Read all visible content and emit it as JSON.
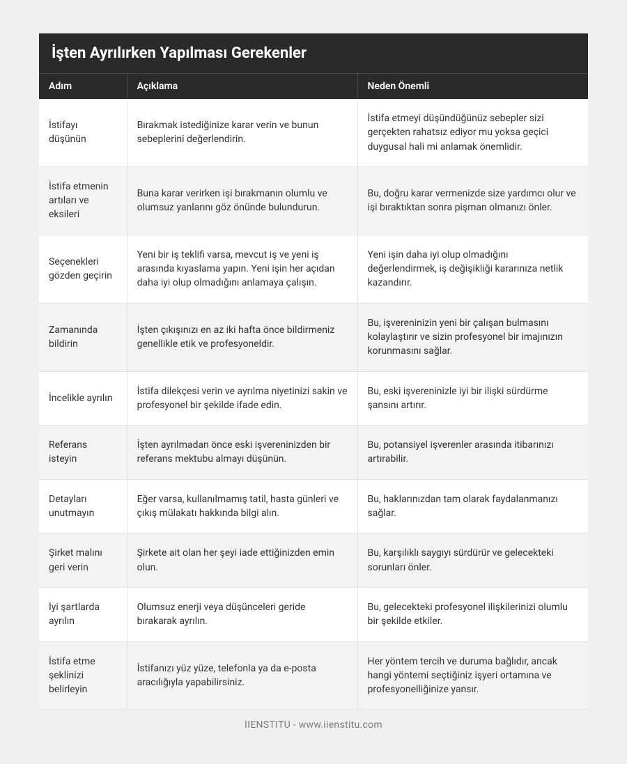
{
  "table": {
    "caption": "İşten Ayrılırken Yapılması Gerekenler",
    "columns": [
      "Adım",
      "Açıklama",
      "Neden Önemli"
    ],
    "rows": [
      {
        "step": "İstifayı düşünün",
        "desc": "Bırakmak istediğinize karar verin ve bunun sebeplerini değerlendirin.",
        "why": "İstifa etmeyi düşündüğünüz sebepler sizi gerçekten rahatsız ediyor mu yoksa geçici duygusal hali mi anlamak önemlidir."
      },
      {
        "step": "İstifa etmenin artıları ve eksileri",
        "desc": "Buna karar verirken işi bırakmanın olumlu ve olumsuz yanlarını göz önünde bulundurun.",
        "why": "Bu, doğru karar vermenizde size yardımcı olur ve işi bıraktıktan sonra pişman olmanızı önler."
      },
      {
        "step": "Seçenekleri gözden geçirin",
        "desc": "Yeni bir iş teklifi varsa, mevcut iş ve yeni iş arasında kıyaslama yapın. Yeni işin her açıdan daha iyi olup olmadığını anlamaya çalışın.",
        "why": "Yeni işin daha iyi olup olmadığını değerlendirmek, iş değişikliği kararınıza netlik kazandırır."
      },
      {
        "step": "Zamanında bildirin",
        "desc": "İşten çıkışınızı en az iki hafta önce bildirmeniz genellikle etik ve profesyoneldir.",
        "why": "Bu, işvereninizin yeni bir çalışan bulmasını kolaylaştırır ve sizin profesyonel bir imajınızın korunmasını sağlar."
      },
      {
        "step": "İncelikle ayrılın",
        "desc": "İstifa dilekçesi verin ve ayrılma niyetinizi sakin ve profesyonel bir şekilde ifade edin.",
        "why": "Bu, eski işvereninizle iyi bir ilişki sürdürme şansını artırır."
      },
      {
        "step": "Referans isteyin",
        "desc": "İşten ayrılmadan önce eski işvereninizden bir referans mektubu almayı düşünün.",
        "why": "Bu, potansiyel işverenler arasında itibarınızı artırabilir."
      },
      {
        "step": "Detayları unutmayın",
        "desc": "Eğer varsa, kullanılmamış tatil, hasta günleri ve çıkış mülakatı hakkında bilgi alın.",
        "why": "Bu, haklarınızdan tam olarak faydalanmanızı sağlar."
      },
      {
        "step": "Şirket malını geri verin",
        "desc": "Şirkete ait olan her şeyi iade ettiğinizden emin olun.",
        "why": "Bu, karşılıklı saygıyı sürdürür ve gelecekteki sorunları önler."
      },
      {
        "step": "İyi şartlarda ayrılın",
        "desc": "Olumsuz enerji veya düşünceleri geride bırakarak ayrılın.",
        "why": "Bu, gelecekteki profesyonel ilişkilerinizi olumlu bir şekilde etkiler."
      },
      {
        "step": "İstifa etme şeklinizi belirleyin",
        "desc": "İstifanızı yüz yüze, telefonla ya da e-posta aracılığıyla yapabilirsiniz.",
        "why": "Her yöntem tercih ve duruma bağlıdır, ancak hangi yöntemi seçtiğiniz işyeri ortamına ve profesyonelliğinize yansır."
      }
    ]
  },
  "footer": "IIENSTITU - www.iienstitu.com",
  "styling": {
    "background_color": "#f0f0f0",
    "caption_bg": "#2a2a2a",
    "caption_fg": "#ffffff",
    "header_bg": "#2a2a2a",
    "header_fg": "#ffffff",
    "row_odd_bg": "#ffffff",
    "row_even_bg": "#f3f3f3",
    "border_color": "#e4e4e4",
    "text_color": "#333333",
    "footer_color": "#7a7a7a",
    "caption_fontsize": 22,
    "header_fontsize": 14,
    "cell_fontsize": 14,
    "footer_fontsize": 14,
    "column_widths_pct": [
      16,
      42,
      42
    ]
  }
}
